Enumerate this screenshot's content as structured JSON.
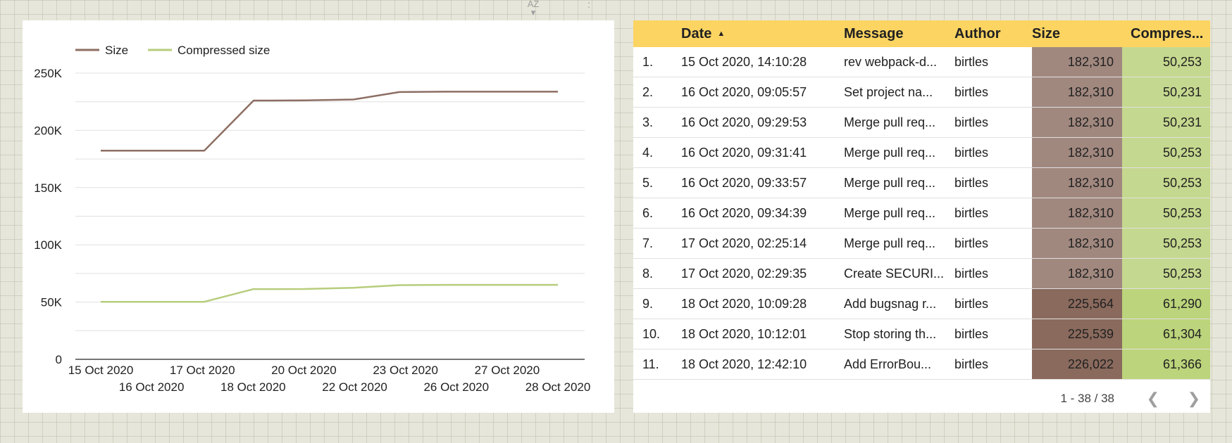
{
  "colors": {
    "size": "#8d6e63",
    "compressed": "#b7cd7c",
    "header": "#fcd462",
    "size_light": "#a1887f",
    "size_dark": "#8a6a5d",
    "comp_light": "#c5d88f",
    "comp_dark": "#bcd47b"
  },
  "chart_data": {
    "type": "line",
    "x": [
      "15 Oct 2020",
      "16 Oct 2020",
      "17 Oct 2020",
      "18 Oct 2020",
      "20 Oct 2020",
      "22 Oct 2020",
      "23 Oct 2020",
      "26 Oct 2020",
      "27 Oct 2020",
      "28 Oct 2020"
    ],
    "series": [
      {
        "name": "Size",
        "values": [
          182310,
          182310,
          182310,
          226022,
          226200,
          227000,
          233500,
          233800,
          233800,
          233800
        ]
      },
      {
        "name": "Compressed size",
        "values": [
          50253,
          50253,
          50253,
          61366,
          61400,
          62500,
          64800,
          65000,
          65000,
          65000
        ]
      }
    ],
    "ylim": [
      0,
      250000
    ],
    "y_ticks": [
      "0",
      "50K",
      "100K",
      "150K",
      "200K",
      "250K"
    ],
    "grid": true,
    "legend_position": "top-left"
  },
  "table": {
    "headers": {
      "date": "Date",
      "message": "Message",
      "author": "Author",
      "size": "Size",
      "compressed": "Compres..."
    },
    "rows": [
      {
        "num": "1.",
        "date": "15 Oct 2020, 14:10:28",
        "message": "rev webpack-d...",
        "author": "birtles",
        "size": "182,310",
        "compressed": "50,253"
      },
      {
        "num": "2.",
        "date": "16 Oct 2020, 09:05:57",
        "message": "Set project na...",
        "author": "birtles",
        "size": "182,310",
        "compressed": "50,231"
      },
      {
        "num": "3.",
        "date": "16 Oct 2020, 09:29:53",
        "message": "Merge pull req...",
        "author": "birtles",
        "size": "182,310",
        "compressed": "50,231"
      },
      {
        "num": "4.",
        "date": "16 Oct 2020, 09:31:41",
        "message": "Merge pull req...",
        "author": "birtles",
        "size": "182,310",
        "compressed": "50,253"
      },
      {
        "num": "5.",
        "date": "16 Oct 2020, 09:33:57",
        "message": "Merge pull req...",
        "author": "birtles",
        "size": "182,310",
        "compressed": "50,253"
      },
      {
        "num": "6.",
        "date": "16 Oct 2020, 09:34:39",
        "message": "Merge pull req...",
        "author": "birtles",
        "size": "182,310",
        "compressed": "50,253"
      },
      {
        "num": "7.",
        "date": "17 Oct 2020, 02:25:14",
        "message": "Merge pull req...",
        "author": "birtles",
        "size": "182,310",
        "compressed": "50,253"
      },
      {
        "num": "8.",
        "date": "17 Oct 2020, 02:29:35",
        "message": "Create SECURI...",
        "author": "birtles",
        "size": "182,310",
        "compressed": "50,253"
      },
      {
        "num": "9.",
        "date": "18 Oct 2020, 10:09:28",
        "message": "Add bugsnag r...",
        "author": "birtles",
        "size": "225,564",
        "compressed": "61,290"
      },
      {
        "num": "10.",
        "date": "18 Oct 2020, 10:12:01",
        "message": "Stop storing th...",
        "author": "birtles",
        "size": "225,539",
        "compressed": "61,304"
      },
      {
        "num": "11.",
        "date": "18 Oct 2020, 12:42:10",
        "message": "Add ErrorBou...",
        "author": "birtles",
        "size": "226,022",
        "compressed": "61,366"
      }
    ],
    "pagination": "1 - 38 / 38"
  },
  "icons": {
    "sort": "sort-az-icon",
    "more": "more-vert-icon",
    "sort_caret": "caret-up-icon",
    "prev": "chevron-left-icon",
    "next": "chevron-right-icon"
  }
}
